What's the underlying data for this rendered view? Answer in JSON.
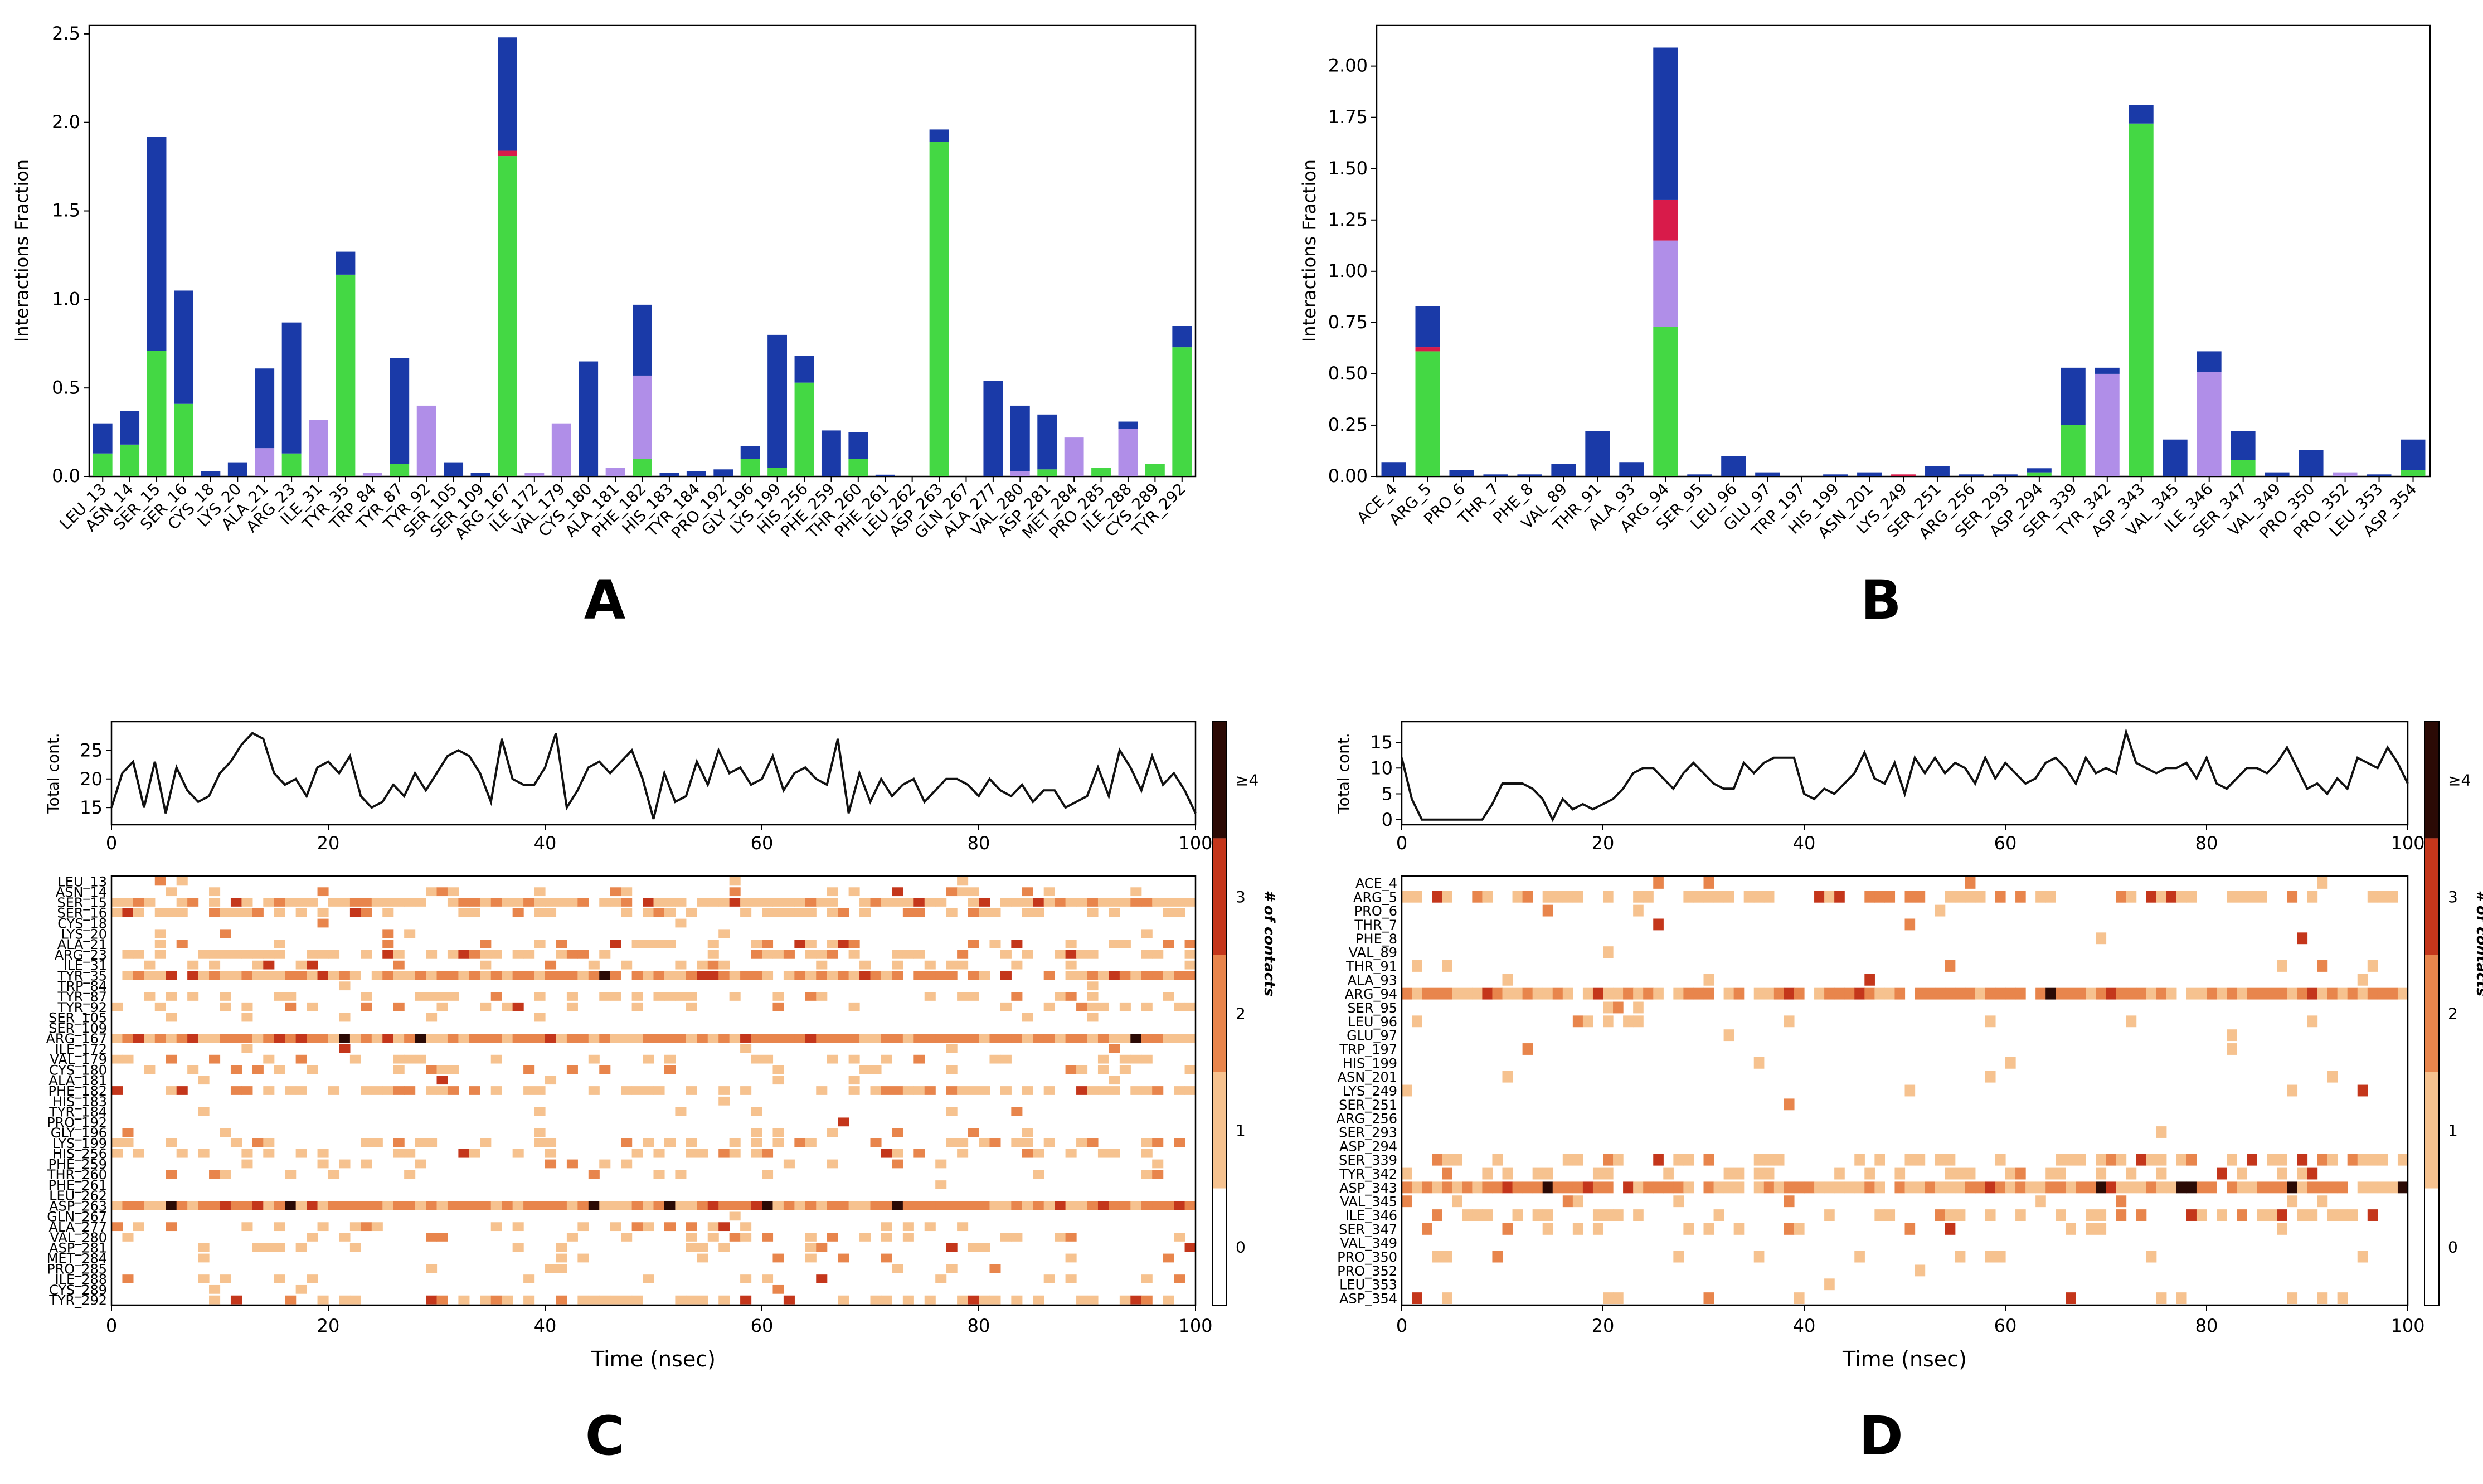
{
  "colors": {
    "green": "#44d844",
    "blue": "#1a3aa8",
    "red": "#d81b4a",
    "purple": "#b08ee8"
  },
  "panels": {
    "A": {
      "letter": "A",
      "chart_data": {
        "type": "bar",
        "stacked": true,
        "ylabel": "Interactions Fraction",
        "ylim": [
          0,
          2.55
        ],
        "yticks": [
          "0.0",
          "0.5",
          "1.0",
          "1.5",
          "2.0",
          "2.5"
        ],
        "ytick_values": [
          0,
          0.5,
          1.0,
          1.5,
          2.0,
          2.5
        ],
        "categories": [
          "LEU_13",
          "ASN_14",
          "SER_15",
          "SER_16",
          "CYS_18",
          "LYS_20",
          "ALA_21",
          "ARG_23",
          "ILE_31",
          "TYR_35",
          "TRP_84",
          "TYR_87",
          "TYR_92",
          "SER_105",
          "SER_109",
          "ARG_167",
          "ILE_172",
          "VAL_179",
          "CYS_180",
          "ALA_181",
          "PHE_182",
          "HIS_183",
          "TYR_184",
          "PRO_192",
          "GLY_196",
          "LYS_199",
          "HIS_256",
          "PHE_259",
          "THR_260",
          "PHE_261",
          "LEU_262",
          "ASP_263",
          "GLN_267",
          "ALA_277",
          "VAL_280",
          "ASP_281",
          "MET_284",
          "PRO_285",
          "ILE_288",
          "CYS_289",
          "TYR_292"
        ],
        "series": [
          {
            "key": "green",
            "values": [
              0.13,
              0.18,
              0.71,
              0.41,
              0,
              0,
              0,
              0.13,
              0,
              1.14,
              0,
              0.07,
              0,
              0,
              0,
              1.81,
              0,
              0,
              0,
              0,
              0.1,
              0,
              0,
              0,
              0.1,
              0.05,
              0.53,
              0,
              0.1,
              0,
              0,
              1.89,
              0,
              0,
              0,
              0.04,
              0,
              0.05,
              0,
              0.07,
              0.73
            ]
          },
          {
            "key": "purple",
            "values": [
              0,
              0,
              0,
              0,
              0,
              0,
              0.16,
              0,
              0.32,
              0,
              0.02,
              0,
              0.4,
              0,
              0,
              0,
              0.02,
              0.3,
              0,
              0.05,
              0.47,
              0,
              0,
              0,
              0,
              0,
              0,
              0,
              0,
              0,
              0,
              0,
              0,
              0,
              0.03,
              0,
              0.22,
              0,
              0.27,
              0,
              0
            ]
          },
          {
            "key": "red",
            "values": [
              0,
              0,
              0,
              0,
              0,
              0,
              0,
              0,
              0,
              0,
              0,
              0,
              0,
              0,
              0,
              0.03,
              0,
              0,
              0,
              0,
              0,
              0,
              0,
              0,
              0,
              0,
              0,
              0,
              0,
              0,
              0,
              0,
              0,
              0,
              0,
              0,
              0,
              0,
              0,
              0,
              0
            ]
          },
          {
            "key": "blue",
            "values": [
              0.17,
              0.19,
              1.21,
              0.64,
              0.03,
              0.08,
              0.45,
              0.74,
              0,
              0.13,
              0,
              0.6,
              0,
              0.08,
              0.02,
              0.64,
              0,
              0,
              0.65,
              0,
              0.4,
              0.02,
              0.03,
              0.04,
              0.07,
              0.75,
              0.15,
              0.26,
              0.15,
              0.01,
              0,
              0.07,
              0,
              0.54,
              0.37,
              0.31,
              0,
              0,
              0.04,
              0,
              0.12
            ]
          }
        ]
      }
    },
    "B": {
      "letter": "B",
      "chart_data": {
        "type": "bar",
        "stacked": true,
        "ylabel": "Interactions Fraction",
        "ylim": [
          0,
          2.2
        ],
        "yticks": [
          "0.00",
          "0.25",
          "0.50",
          "0.75",
          "1.00",
          "1.25",
          "1.50",
          "1.75",
          "2.00"
        ],
        "ytick_values": [
          0,
          0.25,
          0.5,
          0.75,
          1.0,
          1.25,
          1.5,
          1.75,
          2.0
        ],
        "categories": [
          "ACE_4",
          "ARG_5",
          "PRO_6",
          "THR_7",
          "PHE_8",
          "VAL_89",
          "THR_91",
          "ALA_93",
          "ARG_94",
          "SER_95",
          "LEU_96",
          "GLU_97",
          "TRP_197",
          "HIS_199",
          "ASN_201",
          "LYS_249",
          "SER_251",
          "ARG_256",
          "SER_293",
          "ASP_294",
          "SER_339",
          "TYR_342",
          "ASP_343",
          "VAL_345",
          "ILE_346",
          "SER_347",
          "VAL_349",
          "PRO_350",
          "PRO_352",
          "LEU_353",
          "ASP_354"
        ],
        "series": [
          {
            "key": "green",
            "values": [
              0,
              0.61,
              0,
              0,
              0,
              0,
              0,
              0,
              0.73,
              0,
              0,
              0,
              0,
              0,
              0,
              0,
              0,
              0,
              0,
              0.02,
              0.25,
              0,
              1.72,
              0,
              0,
              0.08,
              0,
              0,
              0,
              0,
              0.03
            ]
          },
          {
            "key": "purple",
            "values": [
              0,
              0,
              0,
              0,
              0,
              0,
              0,
              0,
              0.42,
              0,
              0,
              0,
              0,
              0,
              0,
              0,
              0,
              0,
              0,
              0,
              0,
              0.5,
              0,
              0,
              0.51,
              0,
              0,
              0,
              0.02,
              0,
              0
            ]
          },
          {
            "key": "red",
            "values": [
              0,
              0.02,
              0,
              0,
              0,
              0,
              0,
              0,
              0.2,
              0,
              0,
              0,
              0,
              0,
              0,
              0.01,
              0,
              0,
              0,
              0,
              0,
              0,
              0,
              0,
              0,
              0,
              0,
              0,
              0,
              0,
              0
            ]
          },
          {
            "key": "blue",
            "values": [
              0.07,
              0.2,
              0.03,
              0.01,
              0.01,
              0.06,
              0.22,
              0.07,
              0.74,
              0.01,
              0.1,
              0.02,
              0,
              0.01,
              0.02,
              0,
              0.05,
              0.01,
              0.01,
              0.02,
              0.28,
              0.03,
              0.09,
              0.18,
              0.1,
              0.14,
              0.02,
              0.13,
              0,
              0.01,
              0.15
            ]
          }
        ]
      }
    },
    "C": {
      "letter": "C",
      "line_chart": {
        "type": "line",
        "ylabel": "Total cont.",
        "ylim": [
          12,
          30
        ],
        "yticks": [
          "15",
          "20",
          "25"
        ],
        "ytick_values": [
          15,
          20,
          25
        ],
        "xlim": [
          0,
          100
        ],
        "xticks": [
          "0",
          "20",
          "40",
          "60",
          "80",
          "100"
        ],
        "values": [
          15,
          21,
          23,
          15,
          23,
          14,
          22,
          18,
          16,
          17,
          21,
          23,
          26,
          28,
          27,
          21,
          19,
          20,
          17,
          22,
          23,
          21,
          24,
          17,
          15,
          16,
          19,
          17,
          21,
          18,
          21,
          24,
          25,
          24,
          21,
          16,
          27,
          20,
          19,
          19,
          22,
          28,
          15,
          18,
          22,
          23,
          21,
          23,
          25,
          20,
          13,
          21,
          16,
          17,
          23,
          19,
          25,
          21,
          22,
          19,
          20,
          24,
          18,
          21,
          22,
          20,
          19,
          27,
          14,
          21,
          16,
          20,
          17,
          19,
          20,
          16,
          18,
          20,
          20,
          19,
          17,
          20,
          18,
          17,
          19,
          16,
          18,
          18,
          15,
          16,
          17,
          22,
          17,
          25,
          22,
          18,
          24,
          19,
          21,
          18,
          14
        ]
      },
      "heatmap": {
        "type": "heatmap",
        "xlabel": "Time (nsec)",
        "xlim": [
          0,
          100
        ],
        "xticks": [
          "0",
          "20",
          "40",
          "60",
          "80",
          "100"
        ],
        "rows": [
          "LEU_13",
          "ASN_14",
          "SER_15",
          "SER_16",
          "CYS_18",
          "LYS_20",
          "ALA_21",
          "ARG_23",
          "ILE_31",
          "TYR_35",
          "TRP_84",
          "TYR_87",
          "TYR_92",
          "SER_105",
          "SER_109",
          "ARG_167",
          "ILE_172",
          "VAL_179",
          "CYS_180",
          "ALA_181",
          "PHE_182",
          "HIS_183",
          "TYR_184",
          "PRO_192",
          "GLY_196",
          "LYS_199",
          "HIS_256",
          "PHE_259",
          "THR_260",
          "PHE_261",
          "LEU_262",
          "ASP_263",
          "GLN_267",
          "ALA_277",
          "VAL_280",
          "ASP_281",
          "MET_284",
          "PRO_285",
          "ILE_288",
          "CYS_289",
          "TYR_292"
        ],
        "row_density": [
          0.06,
          0.15,
          0.8,
          0.5,
          0.02,
          0.05,
          0.3,
          0.45,
          0.2,
          0.9,
          0.02,
          0.35,
          0.25,
          0.05,
          0.02,
          1.0,
          0.03,
          0.2,
          0.3,
          0.05,
          0.5,
          0.03,
          0.03,
          0.03,
          0.1,
          0.4,
          0.3,
          0.15,
          0.15,
          0.02,
          0.01,
          1.0,
          0.02,
          0.3,
          0.2,
          0.2,
          0.12,
          0.05,
          0.15,
          0.05,
          0.45
        ],
        "colorbar_label": "# of contacts",
        "colorbar_ticks": [
          "0",
          "1",
          "2",
          "3",
          "≥4"
        ]
      }
    },
    "D": {
      "letter": "D",
      "line_chart": {
        "type": "line",
        "ylabel": "Total cont.",
        "ylim": [
          -1,
          19
        ],
        "yticks": [
          "0",
          "5",
          "10",
          "15"
        ],
        "ytick_values": [
          0,
          5,
          10,
          15
        ],
        "xlim": [
          0,
          100
        ],
        "xticks": [
          "0",
          "20",
          "40",
          "60",
          "80",
          "100"
        ],
        "values": [
          12,
          4,
          0,
          0,
          0,
          0,
          0,
          0,
          0,
          3,
          7,
          7,
          7,
          6,
          4,
          0,
          4,
          2,
          3,
          2,
          3,
          4,
          6,
          9,
          10,
          10,
          8,
          6,
          9,
          11,
          9,
          7,
          6,
          6,
          11,
          9,
          11,
          12,
          12,
          12,
          5,
          4,
          6,
          5,
          7,
          9,
          13,
          8,
          7,
          11,
          5,
          12,
          9,
          12,
          9,
          11,
          10,
          7,
          12,
          8,
          11,
          9,
          7,
          8,
          11,
          12,
          10,
          7,
          12,
          9,
          10,
          9,
          17,
          11,
          10,
          9,
          10,
          10,
          11,
          8,
          12,
          7,
          6,
          8,
          10,
          10,
          9,
          11,
          14,
          10,
          6,
          7,
          5,
          8,
          6,
          12,
          11,
          10,
          14,
          11,
          7
        ]
      },
      "heatmap": {
        "type": "heatmap",
        "xlabel": "Time (nsec)",
        "xlim": [
          0,
          100
        ],
        "xticks": [
          "0",
          "20",
          "40",
          "60",
          "80",
          "100"
        ],
        "rows": [
          "ACE_4",
          "ARG_5",
          "PRO_6",
          "THR_7",
          "PHE_8",
          "VAL_89",
          "THR_91",
          "ALA_93",
          "ARG_94",
          "SER_95",
          "LEU_96",
          "GLU_97",
          "TRP_197",
          "HIS_199",
          "ASN_201",
          "LYS_249",
          "SER_251",
          "ARG_256",
          "SER_293",
          "ASP_294",
          "SER_339",
          "TYR_342",
          "ASP_343",
          "VAL_345",
          "ILE_346",
          "SER_347",
          "VAL_349",
          "PRO_350",
          "PRO_352",
          "LEU_353",
          "ASP_354"
        ],
        "row_density": [
          0.04,
          0.6,
          0.03,
          0.03,
          0.03,
          0.02,
          0.1,
          0.05,
          0.95,
          0.02,
          0.08,
          0.02,
          0.01,
          0.01,
          0.01,
          0.02,
          0.02,
          0.01,
          0.01,
          0.02,
          0.4,
          0.3,
          0.95,
          0.1,
          0.3,
          0.15,
          0.02,
          0.1,
          0.02,
          0.02,
          0.12
        ],
        "colorbar_label": "# of contacts",
        "colorbar_ticks": [
          "0",
          "1",
          "2",
          "3",
          "≥4"
        ]
      }
    }
  }
}
